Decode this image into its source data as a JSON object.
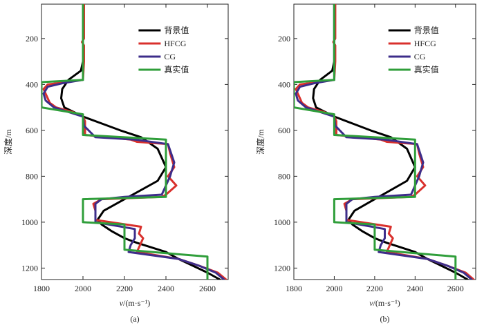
{
  "chart_data": [
    {
      "type": "line",
      "caption": "(a)",
      "xlabel": "v/(m·s⁻¹)",
      "ylabel": "深度/m",
      "xlim": [
        1800,
        2700
      ],
      "ylim": [
        50,
        1250
      ],
      "xticks": [
        1800,
        2000,
        2200,
        2400,
        2600
      ],
      "yticks": [
        200,
        400,
        600,
        800,
        1000,
        1200
      ],
      "grid": false,
      "legend_position": "top-right",
      "series": [
        {
          "name": "背景值",
          "color": "#000000",
          "x": [
            2000,
            2000,
            1990,
            1930,
            1900,
            1895,
            1910,
            2000,
            2090,
            2180,
            2280,
            2360,
            2400,
            2360,
            2260,
            2180,
            2100,
            2070,
            2090,
            2140,
            2200,
            2260,
            2330,
            2400,
            2460,
            2530,
            2600,
            2660
          ],
          "y": [
            50,
            300,
            340,
            380,
            420,
            460,
            500,
            540,
            570,
            600,
            630,
            680,
            760,
            820,
            870,
            910,
            950,
            990,
            1010,
            1040,
            1070,
            1090,
            1110,
            1130,
            1160,
            1190,
            1220,
            1250
          ]
        },
        {
          "name": "HFCG",
          "color": "#d9302c",
          "x": [
            2005,
            2005,
            1995,
            2005,
            2005,
            2000,
            1830,
            1810,
            1820,
            1840,
            1870,
            1950,
            2000,
            2010,
            2010,
            2230,
            2260,
            2410,
            2420,
            2440,
            2410,
            2450,
            2400,
            2380,
            2090,
            2050,
            2060,
            2060,
            2280,
            2270,
            2290,
            2260,
            2460,
            2560,
            2650,
            2690
          ],
          "y": [
            50,
            200,
            215,
            230,
            300,
            380,
            400,
            420,
            440,
            480,
            500,
            520,
            540,
            560,
            620,
            640,
            650,
            660,
            700,
            760,
            800,
            840,
            880,
            890,
            900,
            920,
            950,
            990,
            1020,
            1050,
            1070,
            1130,
            1160,
            1190,
            1220,
            1250
          ]
        },
        {
          "name": "CG",
          "color": "#3d2d8a",
          "x": [
            2000,
            2000,
            1900,
            1830,
            1810,
            1820,
            1860,
            2000,
            2005,
            2060,
            2250,
            2410,
            2440,
            2420,
            2380,
            2200,
            2090,
            2060,
            2060,
            2250,
            2250,
            2230,
            2220,
            2460,
            2560,
            2640,
            2680
          ],
          "y": [
            50,
            380,
            395,
            410,
            440,
            470,
            500,
            540,
            580,
            630,
            640,
            660,
            740,
            800,
            880,
            890,
            900,
            920,
            1000,
            1030,
            1070,
            1100,
            1130,
            1160,
            1190,
            1220,
            1250
          ]
        },
        {
          "name": "真实值",
          "color": "#2f9e3a",
          "x": [
            2000,
            2000,
            1800,
            1800,
            2000,
            2000,
            2400,
            2400,
            2000,
            2000,
            2200,
            2200,
            2600,
            2600
          ],
          "y": [
            50,
            380,
            390,
            500,
            530,
            620,
            640,
            890,
            900,
            1000,
            1010,
            1120,
            1150,
            1250
          ]
        }
      ]
    },
    {
      "type": "line",
      "caption": "(b)",
      "xlabel": "v/(m·s⁻¹)",
      "ylabel": "深度/m",
      "xlim": [
        1800,
        2700
      ],
      "ylim": [
        50,
        1250
      ],
      "xticks": [
        1800,
        2000,
        2200,
        2400,
        2600
      ],
      "yticks": [
        200,
        400,
        600,
        800,
        1000,
        1200
      ],
      "grid": false,
      "legend_position": "top-right",
      "series": [
        {
          "name": "背景值",
          "color": "#000000",
          "x": [
            2000,
            2000,
            1990,
            1930,
            1900,
            1895,
            1910,
            2000,
            2090,
            2180,
            2280,
            2360,
            2400,
            2360,
            2260,
            2180,
            2100,
            2070,
            2090,
            2140,
            2200,
            2260,
            2330,
            2400,
            2460,
            2530,
            2600,
            2660
          ],
          "y": [
            50,
            300,
            340,
            380,
            420,
            460,
            500,
            540,
            570,
            600,
            630,
            680,
            760,
            820,
            870,
            910,
            950,
            990,
            1010,
            1040,
            1070,
            1090,
            1110,
            1130,
            1160,
            1190,
            1220,
            1250
          ]
        },
        {
          "name": "HFCG",
          "color": "#d9302c",
          "x": [
            2005,
            2005,
            1995,
            2005,
            2005,
            2000,
            1830,
            1810,
            1820,
            1840,
            1870,
            1950,
            2000,
            2010,
            2010,
            2230,
            2260,
            2410,
            2420,
            2440,
            2410,
            2450,
            2400,
            2380,
            2090,
            2050,
            2060,
            2060,
            2280,
            2270,
            2290,
            2260,
            2460,
            2560,
            2650,
            2690
          ],
          "y": [
            50,
            200,
            215,
            230,
            300,
            380,
            400,
            420,
            440,
            480,
            500,
            520,
            540,
            560,
            620,
            640,
            650,
            660,
            700,
            760,
            800,
            840,
            880,
            890,
            900,
            920,
            950,
            990,
            1020,
            1050,
            1070,
            1130,
            1160,
            1190,
            1220,
            1250
          ]
        },
        {
          "name": "CG",
          "color": "#3d2d8a",
          "x": [
            2000,
            2000,
            1900,
            1830,
            1810,
            1820,
            1860,
            2000,
            2005,
            2060,
            2250,
            2410,
            2440,
            2420,
            2380,
            2200,
            2090,
            2060,
            2060,
            2250,
            2250,
            2230,
            2220,
            2460,
            2560,
            2640,
            2680
          ],
          "y": [
            50,
            380,
            395,
            410,
            440,
            470,
            500,
            540,
            580,
            630,
            640,
            660,
            740,
            800,
            880,
            890,
            900,
            920,
            1000,
            1030,
            1070,
            1100,
            1130,
            1160,
            1190,
            1220,
            1250
          ]
        },
        {
          "name": "真实值",
          "color": "#2f9e3a",
          "x": [
            2000,
            2000,
            1800,
            1800,
            2000,
            2000,
            2400,
            2400,
            2000,
            2000,
            2200,
            2200,
            2600,
            2600
          ],
          "y": [
            50,
            380,
            390,
            500,
            530,
            620,
            640,
            890,
            900,
            1000,
            1010,
            1120,
            1150,
            1250
          ]
        }
      ]
    }
  ]
}
